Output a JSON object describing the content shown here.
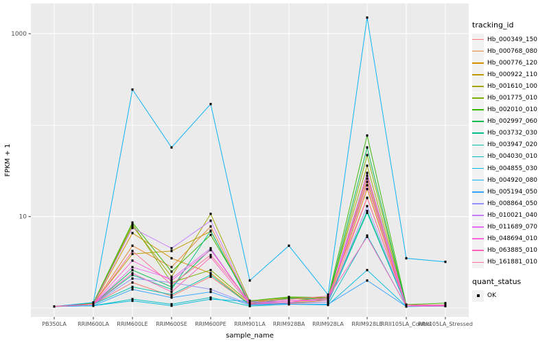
{
  "figure": {
    "panel_background": "#EBEBEB",
    "gridline_color": "#FFFFFF",
    "tick_color": "#333333",
    "tick_label_color": "#4D4D4D",
    "axis_title_color": "#000000"
  },
  "legend": {
    "tracking_title": "tracking_id",
    "quant_title": "quant_status",
    "key_background": "#F2F2F2",
    "quant_items": [
      {
        "label": "OK",
        "marker": "black-square",
        "color": "#000000"
      }
    ]
  },
  "chart_data": {
    "type": "line",
    "title": "",
    "xlabel": "sample_name",
    "ylabel": "FPKM + 1",
    "y_scale": "log10",
    "grid": true,
    "legend_position": "right",
    "y_ticks": [
      {
        "value": 10,
        "label": "10"
      },
      {
        "value": 1000,
        "label": "1000"
      }
    ],
    "y_gridlines": [
      1,
      10,
      100,
      1000
    ],
    "ylim": [
      0.9,
      1900
    ],
    "point_marker": {
      "shape": "square",
      "color": "#000000",
      "meaning": "quant_status OK"
    },
    "x_categories": [
      "PB350LA",
      "RRIM600LA",
      "RRIM600LE",
      "RRIM600SE",
      "RRIM600PE",
      "RRIM901LA",
      "RRIM928BA",
      "RRIM928LA",
      "RRIM928LE",
      "RRII105LA_Control",
      "RRII105LA_Stressed"
    ],
    "series": [
      {
        "name": "Hb_000349_150",
        "color": "#F8766D",
        "values": [
          1.04,
          1.1,
          1.9,
          1.35,
          2.2,
          1.1,
          1.12,
          1.15,
          16,
          1.05,
          1.06
        ]
      },
      {
        "name": "Hb_000768_080",
        "color": "#EA8331",
        "values": [
          1.04,
          1.1,
          4.8,
          2.8,
          7.8,
          1.12,
          1.2,
          1.2,
          28,
          1.05,
          1.06
        ]
      },
      {
        "name": "Hb_000776_120",
        "color": "#D89000",
        "values": [
          1.04,
          1.1,
          6.6,
          3.5,
          2.4,
          1.1,
          1.15,
          1.2,
          20,
          1.05,
          1.08
        ]
      },
      {
        "name": "Hb_000922_110",
        "color": "#C09B00",
        "values": [
          1.04,
          1.12,
          3.9,
          4.2,
          6.9,
          1.15,
          1.2,
          1.25,
          24,
          1.08,
          1.08
        ]
      },
      {
        "name": "Hb_001610_100",
        "color": "#A3A500",
        "values": [
          1.04,
          1.1,
          7.9,
          2.2,
          10.7,
          1.18,
          1.3,
          1.28,
          36,
          1.05,
          1.06
        ]
      },
      {
        "name": "Hb_001775_010",
        "color": "#7CAE00",
        "values": [
          1.04,
          1.1,
          8.3,
          1.9,
          2.6,
          1.14,
          1.28,
          1.2,
          47,
          1.05,
          1.08
        ]
      },
      {
        "name": "Hb_002010_010",
        "color": "#39B600",
        "values": [
          1.04,
          1.14,
          8.6,
          2.5,
          6.3,
          1.2,
          1.32,
          1.3,
          77,
          1.09,
          1.13
        ]
      },
      {
        "name": "Hb_002997_060",
        "color": "#00BB4E",
        "values": [
          1.04,
          1.1,
          2.6,
          1.7,
          4.4,
          1.1,
          1.28,
          1.25,
          57,
          1.05,
          1.08
        ]
      },
      {
        "name": "Hb_003732_030",
        "color": "#00C087",
        "values": [
          1.04,
          1.1,
          2.3,
          1.6,
          7.0,
          1.1,
          1.2,
          1.2,
          11.5,
          1.05,
          1.05
        ]
      },
      {
        "name": "Hb_003947_020",
        "color": "#00C1AB",
        "values": [
          1.04,
          1.1,
          1.7,
          1.4,
          2.3,
          1.08,
          1.14,
          1.15,
          11.0,
          1.05,
          1.05
        ]
      },
      {
        "name": "Hb_004030_010",
        "color": "#00BFC4",
        "values": [
          1.04,
          1.06,
          1.25,
          1.1,
          1.3,
          1.05,
          1.1,
          1.1,
          6.2,
          1.04,
          1.05
        ]
      },
      {
        "name": "Hb_004855_030",
        "color": "#00BAE0",
        "values": [
          1.04,
          1.06,
          1.2,
          1.06,
          1.25,
          1.18,
          1.1,
          1.08,
          2.6,
          1.04,
          1.05
        ]
      },
      {
        "name": "Hb_004920_080",
        "color": "#00B0F6",
        "values": [
          1.04,
          1.15,
          245,
          57,
          170,
          2.0,
          4.8,
          1.4,
          1500,
          3.5,
          3.2
        ]
      },
      {
        "name": "Hb_005194_050",
        "color": "#35A2FF",
        "values": [
          1.04,
          1.06,
          1.6,
          1.3,
          1.5,
          1.08,
          1.1,
          1.1,
          2.0,
          1.04,
          1.05
        ]
      },
      {
        "name": "Hb_008864_050",
        "color": "#9590FF",
        "values": [
          1.04,
          1.1,
          2.1,
          1.9,
          1.6,
          1.1,
          1.14,
          1.15,
          13,
          1.05,
          1.05
        ]
      },
      {
        "name": "Hb_010021_040",
        "color": "#C77CFF",
        "values": [
          1.04,
          1.1,
          7.5,
          4.5,
          9.0,
          1.14,
          1.2,
          1.2,
          30,
          1.05,
          1.08
        ]
      },
      {
        "name": "Hb_011689_070",
        "color": "#E76BF3",
        "values": [
          1.04,
          1.1,
          2.8,
          2.1,
          4.5,
          1.1,
          1.2,
          1.2,
          26,
          1.05,
          1.06
        ]
      },
      {
        "name": "Hb_048694_010",
        "color": "#FA62DB",
        "values": [
          1.04,
          1.1,
          3.3,
          2.0,
          4.3,
          1.14,
          1.2,
          1.25,
          22,
          1.05,
          1.08
        ]
      },
      {
        "name": "Hb_063885_010",
        "color": "#FF62BC",
        "values": [
          1.04,
          1.1,
          2.4,
          1.5,
          3.6,
          1.1,
          1.15,
          1.3,
          6.0,
          1.05,
          1.05
        ]
      },
      {
        "name": "Hb_161881_010",
        "color": "#FF6A98",
        "values": [
          1.04,
          1.1,
          4.2,
          1.8,
          3.8,
          1.18,
          1.24,
          1.35,
          16,
          1.08,
          1.08
        ]
      }
    ]
  }
}
